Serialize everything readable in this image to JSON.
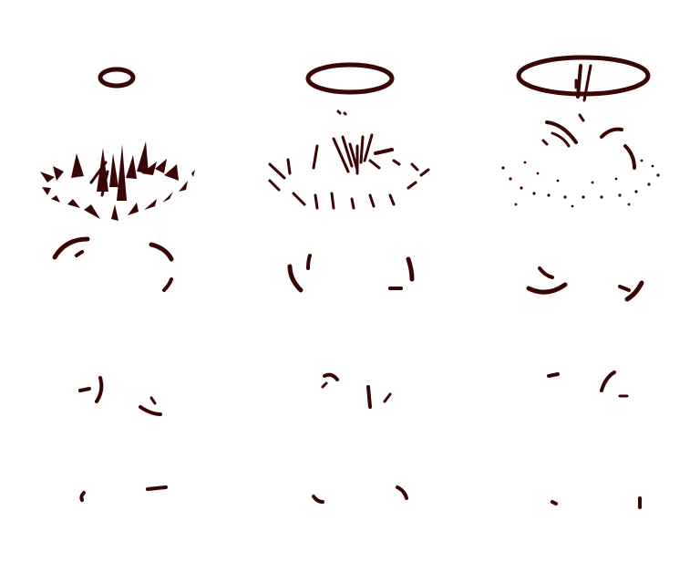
{
  "sheet": {
    "background_color": "#ffffff",
    "ink_color": "#3a0505"
  },
  "frames": [
    {
      "name": "ring-small",
      "row": 1,
      "col": 1
    },
    {
      "name": "ring-medium",
      "row": 1,
      "col": 2
    },
    {
      "name": "ring-large",
      "row": 1,
      "col": 3
    },
    {
      "name": "splash-spikes",
      "row": 2,
      "col": 1
    },
    {
      "name": "splash-streaks",
      "row": 2,
      "col": 2
    },
    {
      "name": "splash-specks",
      "row": 2,
      "col": 3
    },
    {
      "name": "droplets-a",
      "row": 3,
      "col": 1
    },
    {
      "name": "droplets-b",
      "row": 3,
      "col": 2
    },
    {
      "name": "droplets-c",
      "row": 3,
      "col": 3
    },
    {
      "name": "droplets-d",
      "row": 4,
      "col": 1
    },
    {
      "name": "droplets-e",
      "row": 4,
      "col": 2
    },
    {
      "name": "droplets-f",
      "row": 4,
      "col": 3
    },
    {
      "name": "droplets-g",
      "row": 5,
      "col": 1
    },
    {
      "name": "droplets-h",
      "row": 5,
      "col": 2
    },
    {
      "name": "droplets-i",
      "row": 5,
      "col": 3
    }
  ]
}
